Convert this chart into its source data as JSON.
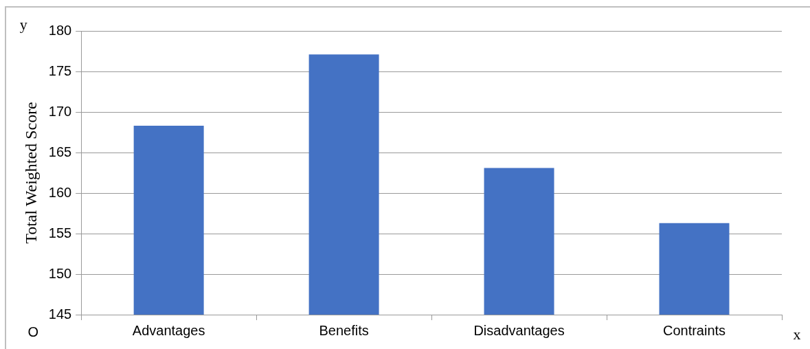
{
  "chart_data": {
    "type": "bar",
    "ylabel": "Total Weighted Score",
    "categories": [
      "Advantages",
      "Benefits",
      "Disadvantages",
      "Contraints"
    ],
    "values": [
      168.3,
      177.1,
      163.1,
      156.3
    ],
    "color": "#4472c4",
    "ylim": [
      145,
      180
    ],
    "yticks": [
      145,
      150,
      155,
      160,
      165,
      170,
      175,
      180
    ],
    "grid": "y",
    "legend": false,
    "annotations": [
      "y",
      "x",
      "O"
    ]
  }
}
